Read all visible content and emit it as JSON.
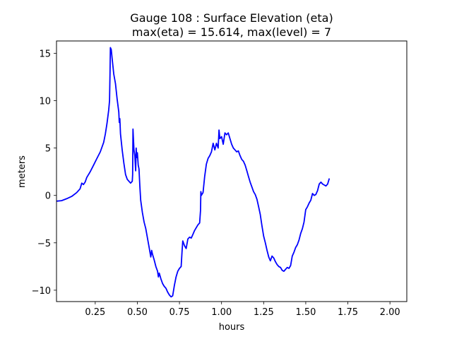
{
  "chart_data": {
    "type": "line",
    "title": "Gauge 108 : Surface Elevation (eta)",
    "subtitle": "max(eta) =  15.614,    max(level) = 7",
    "xlabel": "hours",
    "ylabel": "meters",
    "xlim": [
      0.02,
      2.1
    ],
    "ylim": [
      -11.2,
      16.3
    ],
    "xticks": [
      0.25,
      0.5,
      0.75,
      1.0,
      1.25,
      1.5,
      1.75,
      2.0
    ],
    "xtick_labels": [
      "0.25",
      "0.50",
      "0.75",
      "1.00",
      "1.25",
      "1.50",
      "1.75",
      "2.00"
    ],
    "yticks": [
      -10,
      -5,
      0,
      5,
      10,
      15
    ],
    "ytick_labels": [
      "−10",
      "−5",
      "0",
      "5",
      "10",
      "15"
    ],
    "grid": false,
    "line_color": "#0000ff",
    "series": [
      {
        "values_xy": [
          [
            0.02,
            -0.6
          ],
          [
            0.05,
            -0.55
          ],
          [
            0.08,
            -0.35
          ],
          [
            0.11,
            -0.1
          ],
          [
            0.14,
            0.3
          ],
          [
            0.16,
            0.7
          ],
          [
            0.17,
            1.3
          ],
          [
            0.18,
            1.15
          ],
          [
            0.19,
            1.4
          ],
          [
            0.2,
            1.9
          ],
          [
            0.22,
            2.5
          ],
          [
            0.24,
            3.2
          ],
          [
            0.26,
            3.9
          ],
          [
            0.28,
            4.6
          ],
          [
            0.3,
            5.6
          ],
          [
            0.31,
            6.5
          ],
          [
            0.32,
            7.6
          ],
          [
            0.33,
            9.0
          ],
          [
            0.335,
            10.0
          ],
          [
            0.338,
            13.0
          ],
          [
            0.34,
            15.6
          ],
          [
            0.345,
            15.4
          ],
          [
            0.35,
            14.5
          ],
          [
            0.36,
            12.8
          ],
          [
            0.37,
            11.8
          ],
          [
            0.38,
            10.2
          ],
          [
            0.39,
            8.8
          ],
          [
            0.393,
            7.7
          ],
          [
            0.396,
            8.1
          ],
          [
            0.4,
            6.5
          ],
          [
            0.41,
            4.8
          ],
          [
            0.42,
            3.4
          ],
          [
            0.43,
            2.2
          ],
          [
            0.44,
            1.7
          ],
          [
            0.45,
            1.5
          ],
          [
            0.46,
            1.3
          ],
          [
            0.47,
            1.5
          ],
          [
            0.472,
            2.2
          ],
          [
            0.474,
            7.0
          ],
          [
            0.476,
            6.3
          ],
          [
            0.48,
            4.8
          ],
          [
            0.485,
            4.2
          ],
          [
            0.49,
            2.6
          ],
          [
            0.493,
            5.0
          ],
          [
            0.496,
            4.0
          ],
          [
            0.5,
            4.5
          ],
          [
            0.505,
            3.2
          ],
          [
            0.51,
            2.8
          ],
          [
            0.515,
            1.0
          ],
          [
            0.52,
            -0.5
          ],
          [
            0.53,
            -1.8
          ],
          [
            0.54,
            -2.8
          ],
          [
            0.55,
            -3.5
          ],
          [
            0.56,
            -4.5
          ],
          [
            0.57,
            -5.5
          ],
          [
            0.58,
            -6.5
          ],
          [
            0.585,
            -5.8
          ],
          [
            0.59,
            -6.2
          ],
          [
            0.6,
            -6.8
          ],
          [
            0.61,
            -7.5
          ],
          [
            0.62,
            -8.0
          ],
          [
            0.625,
            -8.6
          ],
          [
            0.63,
            -8.2
          ],
          [
            0.64,
            -8.8
          ],
          [
            0.65,
            -9.3
          ],
          [
            0.66,
            -9.6
          ],
          [
            0.67,
            -9.8
          ],
          [
            0.68,
            -10.2
          ],
          [
            0.69,
            -10.5
          ],
          [
            0.7,
            -10.7
          ],
          [
            0.71,
            -10.6
          ],
          [
            0.72,
            -9.5
          ],
          [
            0.73,
            -8.6
          ],
          [
            0.74,
            -8.0
          ],
          [
            0.75,
            -7.7
          ],
          [
            0.76,
            -7.5
          ],
          [
            0.765,
            -6.0
          ],
          [
            0.77,
            -4.8
          ],
          [
            0.78,
            -5.3
          ],
          [
            0.79,
            -5.6
          ],
          [
            0.8,
            -4.6
          ],
          [
            0.81,
            -4.4
          ],
          [
            0.82,
            -4.5
          ],
          [
            0.83,
            -4.1
          ],
          [
            0.84,
            -3.7
          ],
          [
            0.85,
            -3.4
          ],
          [
            0.86,
            -3.1
          ],
          [
            0.87,
            -2.9
          ],
          [
            0.875,
            -1.6
          ],
          [
            0.877,
            0.4
          ],
          [
            0.88,
            0.0
          ],
          [
            0.89,
            0.3
          ],
          [
            0.9,
            2.0
          ],
          [
            0.91,
            3.3
          ],
          [
            0.92,
            3.9
          ],
          [
            0.93,
            4.2
          ],
          [
            0.94,
            4.6
          ],
          [
            0.95,
            5.5
          ],
          [
            0.96,
            4.8
          ],
          [
            0.97,
            5.5
          ],
          [
            0.98,
            5.0
          ],
          [
            0.985,
            6.9
          ],
          [
            0.99,
            6.0
          ],
          [
            1.0,
            6.2
          ],
          [
            1.01,
            5.4
          ],
          [
            1.02,
            6.6
          ],
          [
            1.03,
            6.4
          ],
          [
            1.04,
            6.6
          ],
          [
            1.05,
            6.0
          ],
          [
            1.06,
            5.4
          ],
          [
            1.07,
            5.0
          ],
          [
            1.08,
            4.8
          ],
          [
            1.09,
            4.6
          ],
          [
            1.1,
            4.7
          ],
          [
            1.11,
            4.2
          ],
          [
            1.12,
            3.8
          ],
          [
            1.13,
            3.6
          ],
          [
            1.14,
            3.2
          ],
          [
            1.15,
            2.6
          ],
          [
            1.16,
            2.0
          ],
          [
            1.17,
            1.4
          ],
          [
            1.18,
            0.9
          ],
          [
            1.19,
            0.4
          ],
          [
            1.2,
            0.1
          ],
          [
            1.21,
            -0.4
          ],
          [
            1.22,
            -1.2
          ],
          [
            1.23,
            -2.0
          ],
          [
            1.24,
            -3.2
          ],
          [
            1.25,
            -4.3
          ],
          [
            1.26,
            -5.0
          ],
          [
            1.27,
            -5.8
          ],
          [
            1.28,
            -6.5
          ],
          [
            1.29,
            -6.9
          ],
          [
            1.3,
            -6.4
          ],
          [
            1.31,
            -6.6
          ],
          [
            1.32,
            -7.0
          ],
          [
            1.33,
            -7.3
          ],
          [
            1.34,
            -7.5
          ],
          [
            1.35,
            -7.6
          ],
          [
            1.36,
            -7.9
          ],
          [
            1.37,
            -8.0
          ],
          [
            1.38,
            -7.8
          ],
          [
            1.39,
            -7.6
          ],
          [
            1.4,
            -7.7
          ],
          [
            1.41,
            -7.4
          ],
          [
            1.42,
            -6.4
          ],
          [
            1.43,
            -6.0
          ],
          [
            1.44,
            -5.5
          ],
          [
            1.45,
            -5.2
          ],
          [
            1.46,
            -4.7
          ],
          [
            1.47,
            -4.0
          ],
          [
            1.48,
            -3.5
          ],
          [
            1.49,
            -2.8
          ],
          [
            1.5,
            -1.5
          ],
          [
            1.51,
            -1.2
          ],
          [
            1.52,
            -0.8
          ],
          [
            1.53,
            -0.5
          ],
          [
            1.54,
            0.2
          ],
          [
            1.55,
            0.0
          ],
          [
            1.56,
            0.1
          ],
          [
            1.57,
            0.5
          ],
          [
            1.58,
            1.2
          ],
          [
            1.59,
            1.4
          ],
          [
            1.6,
            1.2
          ],
          [
            1.61,
            1.1
          ],
          [
            1.62,
            1.0
          ],
          [
            1.63,
            1.2
          ],
          [
            1.64,
            1.8
          ]
        ]
      }
    ]
  }
}
